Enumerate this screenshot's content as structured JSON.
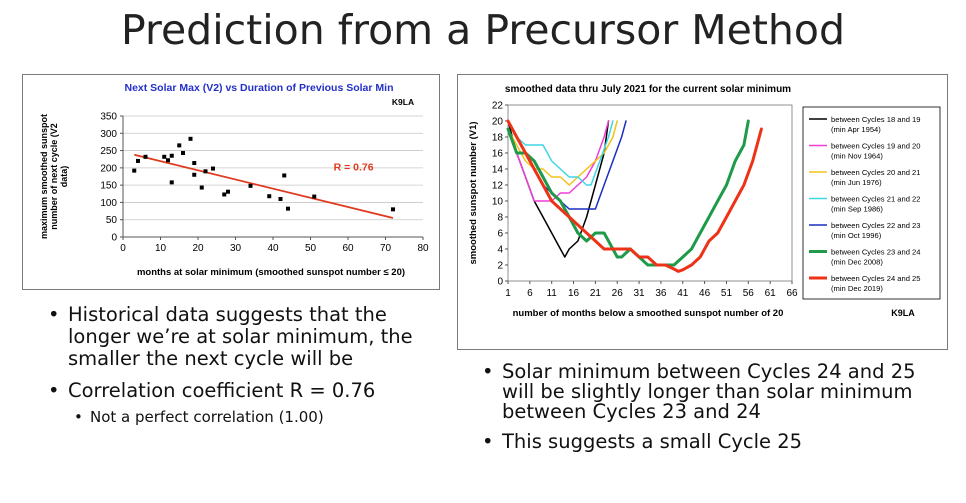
{
  "slide": {
    "title": "Prediction from a Precursor Method"
  },
  "left_bullets": [
    {
      "text": "Historical data suggests that the longer we’re at solar minimum, the smaller the next cycle will be",
      "sub": []
    },
    {
      "text": "Correlation coefficient R = 0.76",
      "sub": [
        "Not a perfect correlation (1.00)"
      ]
    }
  ],
  "right_bullets": [
    {
      "text": "Solar minimum between Cycles 24 and 25 will be slightly longer than solar minimum between Cycles 23 and 24",
      "sub": []
    },
    {
      "text": "This suggests a small Cycle 25",
      "sub": []
    }
  ],
  "chart_data": [
    {
      "type": "scatter",
      "title": "Next Solar Max (V2) vs Duration of Previous Solar Min",
      "xlabel": "months at solar minimum (smoothed sunspot number ≤ 20)",
      "ylabel": "maximum smoothed sunspot number of next cycle (V2 data)",
      "watermark": "K9LA",
      "xlim": [
        0,
        80
      ],
      "ylim": [
        0,
        350
      ],
      "xticks": [
        0,
        10,
        20,
        30,
        40,
        50,
        60,
        70,
        80
      ],
      "yticks": [
        0,
        50,
        100,
        150,
        200,
        250,
        300,
        350
      ],
      "grid": "horizontal",
      "point_color": "#000000",
      "trend_color": "#e03a1e",
      "annotation": "R = 0.76",
      "points": [
        {
          "x": 3,
          "y": 192
        },
        {
          "x": 4,
          "y": 220
        },
        {
          "x": 6,
          "y": 232
        },
        {
          "x": 11,
          "y": 232
        },
        {
          "x": 12,
          "y": 222
        },
        {
          "x": 13,
          "y": 158
        },
        {
          "x": 13,
          "y": 235
        },
        {
          "x": 15,
          "y": 265
        },
        {
          "x": 16,
          "y": 243
        },
        {
          "x": 18,
          "y": 284
        },
        {
          "x": 19,
          "y": 214
        },
        {
          "x": 19,
          "y": 180
        },
        {
          "x": 21,
          "y": 143
        },
        {
          "x": 22,
          "y": 190
        },
        {
          "x": 24,
          "y": 198
        },
        {
          "x": 27,
          "y": 123
        },
        {
          "x": 28,
          "y": 131
        },
        {
          "x": 34,
          "y": 148
        },
        {
          "x": 39,
          "y": 118
        },
        {
          "x": 42,
          "y": 110
        },
        {
          "x": 43,
          "y": 178
        },
        {
          "x": 44,
          "y": 82
        },
        {
          "x": 51,
          "y": 117
        },
        {
          "x": 72,
          "y": 80
        }
      ],
      "trendline": {
        "x": [
          3,
          72
        ],
        "y": [
          238,
          55
        ]
      }
    },
    {
      "type": "line",
      "title": "smoothed data thru July 2021 for the current solar minimum",
      "xlabel": "number of months below a smoothed sunspot number of 20",
      "ylabel": "smoothed sunspot number (V1)",
      "watermark": "K9LA",
      "xlim": [
        1,
        66
      ],
      "ylim": [
        0,
        22
      ],
      "xticks": [
        1,
        6,
        11,
        16,
        21,
        26,
        31,
        36,
        41,
        46,
        51,
        56,
        61,
        66
      ],
      "yticks": [
        0,
        2,
        4,
        6,
        8,
        10,
        12,
        14,
        16,
        18,
        20,
        22
      ],
      "legend_position": "right",
      "series": [
        {
          "name": "between Cycles 18 and 19",
          "note": "(min Apr 1954)",
          "color": "#000000",
          "x": [
            1,
            3,
            5,
            7,
            9,
            11,
            13,
            14,
            15,
            17,
            19,
            21,
            23,
            24
          ],
          "y": [
            20,
            16,
            13,
            10,
            8,
            6,
            4,
            3,
            4,
            5,
            8,
            12,
            16,
            20
          ]
        },
        {
          "name": "between Cycles 19 and 20",
          "note": "(min Nov 1964)",
          "color": "#ee3fd7",
          "x": [
            1,
            3,
            5,
            7,
            9,
            11,
            13,
            15,
            17,
            19,
            21,
            23,
            24
          ],
          "y": [
            19,
            16,
            13,
            10,
            10,
            10,
            11,
            11,
            12,
            13,
            15,
            18,
            20
          ]
        },
        {
          "name": "between Cycles 20 and 21",
          "note": "(min Jun 1976)",
          "color": "#f5c019",
          "x": [
            1,
            3,
            5,
            7,
            9,
            11,
            13,
            15,
            17,
            19,
            21,
            23,
            25,
            26
          ],
          "y": [
            19,
            17,
            15,
            14,
            14,
            13,
            13,
            12,
            13,
            14,
            15,
            16,
            18,
            20
          ]
        },
        {
          "name": "between Cycles 21 and 22",
          "note": "(min Sep 1986)",
          "color": "#3fd6e6",
          "x": [
            1,
            3,
            5,
            7,
            9,
            11,
            13,
            15,
            17,
            19,
            20,
            22,
            24,
            25
          ],
          "y": [
            20,
            18,
            17,
            17,
            17,
            15,
            14,
            13,
            13,
            12,
            12,
            15,
            18,
            20
          ]
        },
        {
          "name": "between Cycles 22 and 23",
          "note": "(min Oct 1996)",
          "color": "#1b2fbf",
          "x": [
            1,
            3,
            5,
            7,
            9,
            11,
            13,
            15,
            17,
            19,
            21,
            23,
            25,
            27,
            28
          ],
          "y": [
            20,
            18,
            16,
            14,
            12,
            11,
            10,
            9,
            9,
            9,
            9,
            12,
            15,
            18,
            20
          ]
        },
        {
          "name": "between Cycles 23 and 24",
          "note": "(min Dec 2008)",
          "color": "#1e9a48",
          "x": [
            1,
            3,
            5,
            7,
            9,
            11,
            13,
            15,
            17,
            19,
            21,
            23,
            25,
            26,
            27,
            29,
            31,
            33,
            35,
            37,
            39,
            41,
            43,
            45,
            47,
            49,
            51,
            53,
            55,
            56
          ],
          "y": [
            19,
            16,
            16,
            15,
            13,
            11,
            10,
            8,
            6,
            5,
            6,
            6,
            4,
            3,
            3,
            4,
            3,
            2,
            2,
            2,
            2,
            3,
            4,
            6,
            8,
            10,
            12,
            15,
            17,
            20
          ]
        },
        {
          "name": "between Cycles 24 and 25",
          "note": "(min Dec 2019)",
          "color": "#ee3217",
          "x": [
            1,
            3,
            5,
            7,
            9,
            11,
            13,
            15,
            17,
            19,
            21,
            23,
            25,
            27,
            29,
            31,
            33,
            35,
            37,
            39,
            40,
            41,
            43,
            45,
            47,
            49,
            51,
            53,
            55,
            57,
            59
          ],
          "y": [
            20,
            18,
            16,
            14,
            12,
            10,
            9,
            8,
            7,
            6,
            5,
            4,
            4,
            4,
            4,
            3,
            3,
            2,
            2,
            1.5,
            1.2,
            1.4,
            2,
            3,
            5,
            6,
            8,
            10,
            12,
            15,
            19
          ]
        }
      ]
    }
  ]
}
